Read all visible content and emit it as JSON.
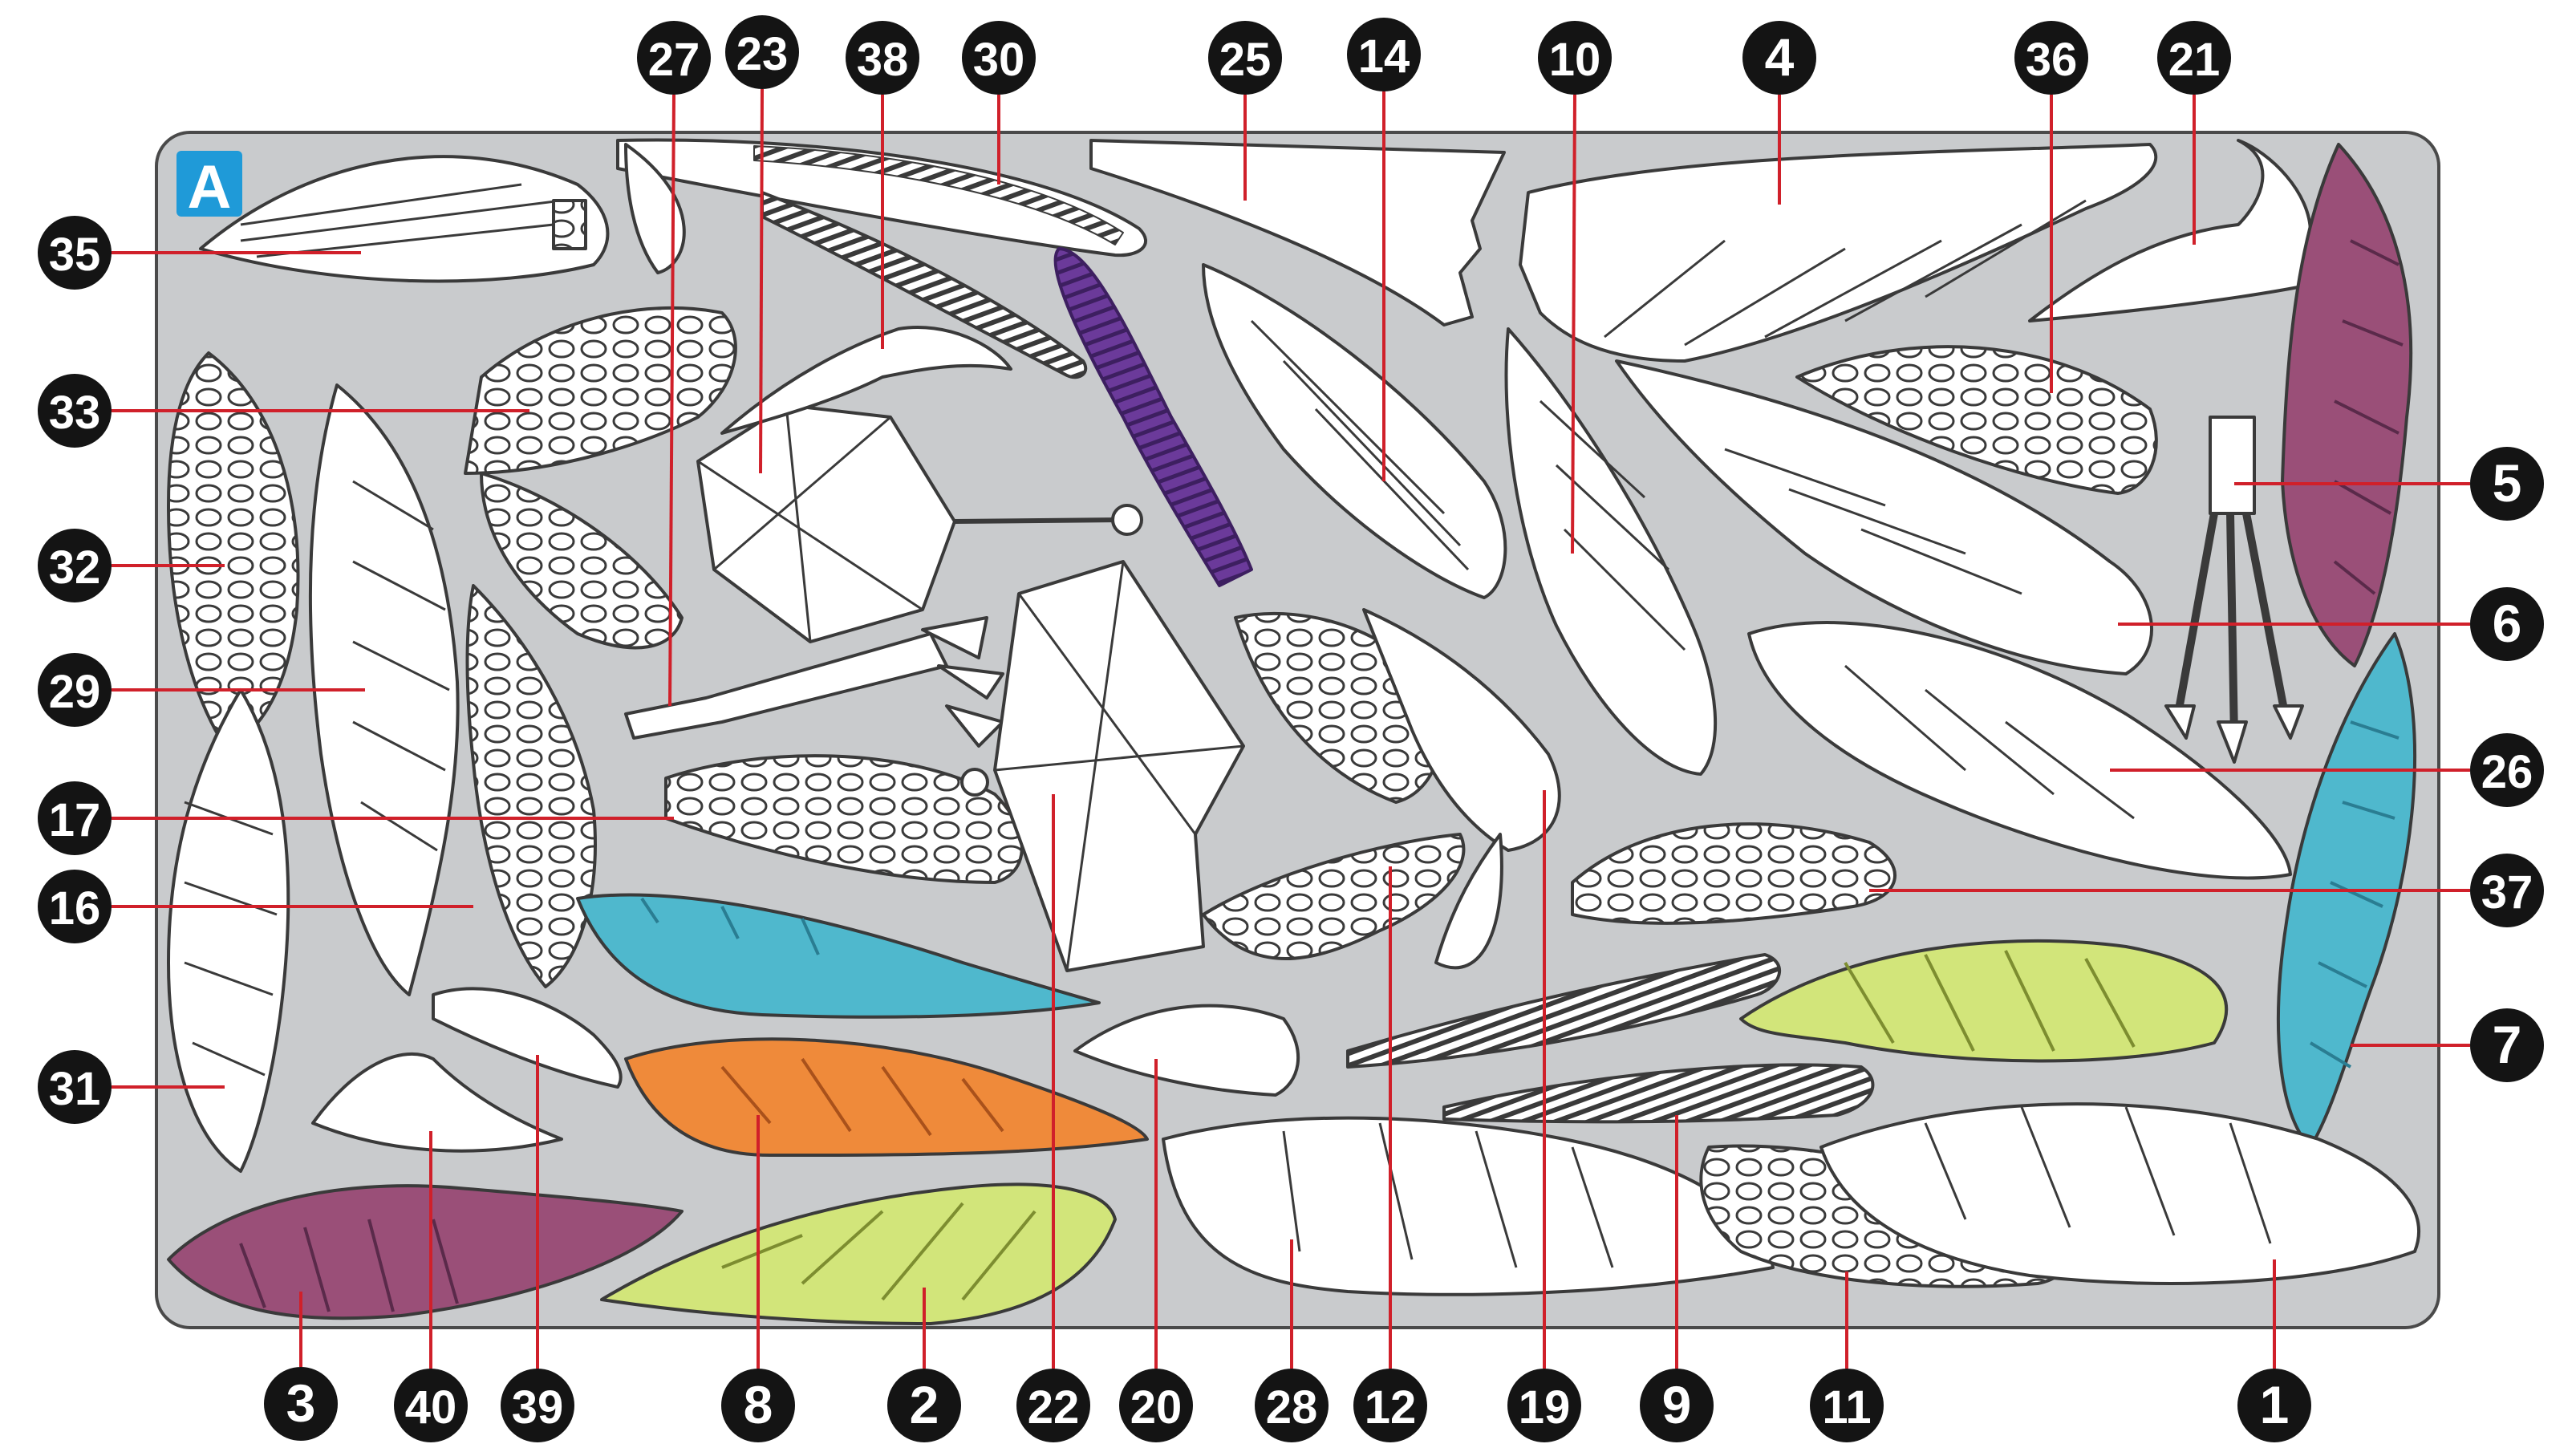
{
  "sheet": {
    "label": "A"
  },
  "colors": {
    "background": "#ffffff",
    "board": "#c9cbcd",
    "board_border": "#4a4a4a",
    "piece_fill": "#ffffff",
    "piece_outline": "#3a3a3a",
    "leader": "#d0202a",
    "badge": "#141414",
    "badge_text": "#ffffff",
    "sheet_badge": "#1f9ad8",
    "purple": "#6b3a9a",
    "magenta": "#9a4f78",
    "cyan": "#4fb8cd",
    "orange": "#ef8a3a",
    "lime": "#d2e57a"
  },
  "callouts": [
    {
      "num": "27",
      "target": "strip-piece"
    },
    {
      "num": "23",
      "target": "body-panel"
    },
    {
      "num": "38",
      "target": "bird-head-piece"
    },
    {
      "num": "30",
      "target": "comb-strip"
    },
    {
      "num": "25",
      "target": "stand-plate"
    },
    {
      "num": "14",
      "target": "wing-piece"
    },
    {
      "num": "10",
      "target": "wing-piece"
    },
    {
      "num": "4",
      "target": "wing-piece"
    },
    {
      "num": "36",
      "target": "feather-lattice"
    },
    {
      "num": "21",
      "target": "bird-head-piece"
    },
    {
      "num": "35",
      "target": "feather-lattice"
    },
    {
      "num": "33",
      "target": "feather-lattice"
    },
    {
      "num": "32",
      "target": "feather-lattice"
    },
    {
      "num": "29",
      "target": "wing-piece"
    },
    {
      "num": "17",
      "target": "feather-lattice"
    },
    {
      "num": "16",
      "target": "wing-piece"
    },
    {
      "num": "31",
      "target": "wing-piece"
    },
    {
      "num": "5",
      "target": "leg-piece"
    },
    {
      "num": "6",
      "target": "wing-piece"
    },
    {
      "num": "26",
      "target": "wing-piece"
    },
    {
      "num": "37",
      "target": "feather-lattice"
    },
    {
      "num": "7",
      "target": "wing-piece"
    },
    {
      "num": "3",
      "target": "wing-piece"
    },
    {
      "num": "40",
      "target": "bird-head-piece"
    },
    {
      "num": "39",
      "target": "bird-head-piece"
    },
    {
      "num": "8",
      "target": "wing-piece"
    },
    {
      "num": "2",
      "target": "wing-piece"
    },
    {
      "num": "22",
      "target": "body-panel"
    },
    {
      "num": "20",
      "target": "bird-head-piece"
    },
    {
      "num": "28",
      "target": "wing-piece"
    },
    {
      "num": "12",
      "target": "feather-lattice"
    },
    {
      "num": "19",
      "target": "bird-head-piece"
    },
    {
      "num": "9",
      "target": "comb-strip"
    },
    {
      "num": "11",
      "target": "feather-lattice"
    },
    {
      "num": "1",
      "target": "wing-piece"
    }
  ]
}
